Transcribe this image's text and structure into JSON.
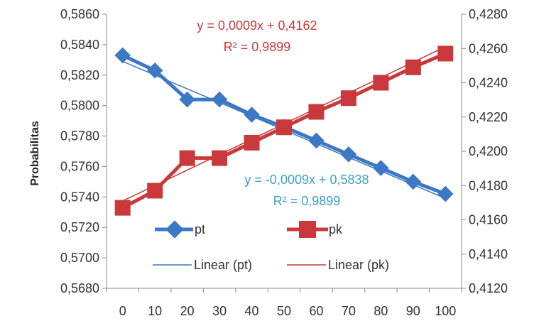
{
  "chart_data": {
    "type": "line",
    "ylabel": "Probabilitas",
    "x": [
      0,
      10,
      20,
      30,
      40,
      50,
      60,
      70,
      80,
      90,
      100
    ],
    "x_ticks": [
      "0",
      "10",
      "20",
      "30",
      "40",
      "50",
      "60",
      "70",
      "80",
      "90",
      "100"
    ],
    "y_left": {
      "lim": [
        0.568,
        0.586
      ],
      "ticks": [
        "0,5680",
        "0,5700",
        "0,5720",
        "0,5740",
        "0,5760",
        "0,5780",
        "0,5800",
        "0,5820",
        "0,5840",
        "0,5860"
      ]
    },
    "y_right": {
      "lim": [
        0.412,
        0.428
      ],
      "ticks": [
        "0,4120",
        "0,4140",
        "0,4160",
        "0,4180",
        "0,4200",
        "0,4220",
        "0,4240",
        "0,4260",
        "0,4280"
      ]
    },
    "series": [
      {
        "name": "pt",
        "axis": "left",
        "color": "#3d78c4",
        "marker": "diamond",
        "values": [
          0.5833,
          0.5823,
          0.5804,
          0.5804,
          0.5794,
          0.5786,
          0.5777,
          0.5768,
          0.5759,
          0.575,
          0.5742
        ]
      },
      {
        "name": "pk",
        "axis": "right",
        "color": "#c9393c",
        "marker": "square",
        "values": [
          0.4167,
          0.4177,
          0.4196,
          0.4196,
          0.4205,
          0.4214,
          0.4223,
          0.4231,
          0.424,
          0.4249,
          0.4257
        ]
      }
    ],
    "trendlines": [
      {
        "name": "Linear (pt)",
        "axis": "left",
        "color": "#3d78c4",
        "slope_per_10": -0.0009,
        "intercept": 0.5838,
        "equation": "y = -0,0009x + 0,5838",
        "r2": "R² = 0,9899"
      },
      {
        "name": "Linear (pk)",
        "axis": "right",
        "color": "#c9393c",
        "slope_per_10": 0.0009,
        "intercept": 0.4162,
        "equation": "y = 0,0009x + 0,4162",
        "r2": "R² = 0,9899"
      }
    ],
    "legend": {
      "placement": "bottom-inside"
    },
    "grid": false
  }
}
